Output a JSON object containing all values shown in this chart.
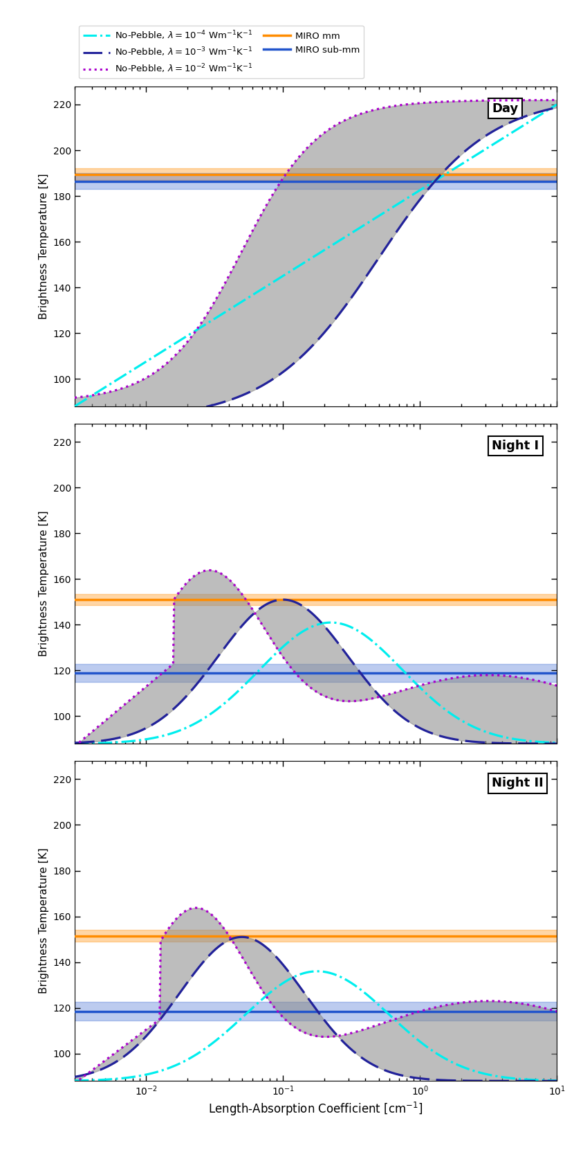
{
  "xlim": [
    0.003,
    10
  ],
  "ylim": [
    88,
    228
  ],
  "panels": [
    "Day",
    "Night I",
    "Night II"
  ],
  "xlabel": "Length-Absorption Coefficient [cm$^{-1}$]",
  "ylabel": "Brightness Temperature [K]",
  "miro_mm": {
    "day": {
      "val": 189.5,
      "err": 2.5
    },
    "night1": {
      "val": 151.0,
      "err": 2.5
    },
    "night2": {
      "val": 151.5,
      "err": 2.5
    }
  },
  "miro_submm": {
    "day": {
      "val": 186.5,
      "err": 3.5
    },
    "night1": {
      "val": 119.0,
      "err": 4.0
    },
    "night2": {
      "val": 118.5,
      "err": 4.0
    }
  },
  "colors": {
    "cyan_dashdot": "#00EEEE",
    "navy_dashed": "#22229a",
    "purple_dotted": "#aa00cc",
    "gray_fill": "#888888",
    "orange": "#FF8C00",
    "blue": "#2255CC"
  },
  "legend_labels": {
    "cyan": "No-Pebble, $\\lambda = 10^{-4}$ Wm$^{-1}$K$^{-1}$",
    "navy": "No-Pebble, $\\lambda = 10^{-3}$ Wm$^{-1}$K$^{-1}$",
    "purple": "No-Pebble, $\\lambda = 10^{-2}$ Wm$^{-1}$K$^{-1}$",
    "orange": "MIRO mm",
    "blue": "MIRO sub-mm"
  }
}
